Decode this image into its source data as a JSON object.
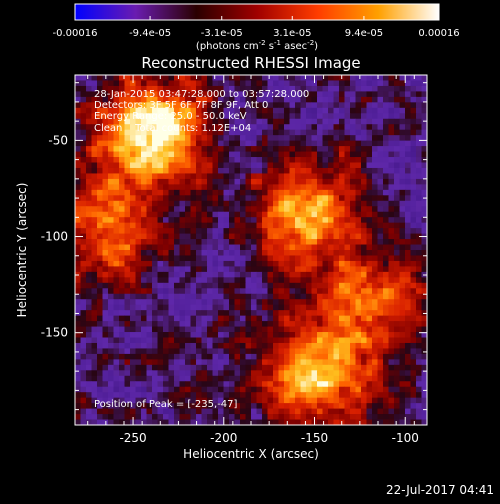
{
  "colorbar": {
    "tick_labels": [
      "-0.00016",
      "-9.4e-05",
      "-3.1e-05",
      "3.1e-05",
      "9.4e-05",
      "0.00016"
    ],
    "tick_values": [
      -0.00016,
      -9.4e-05,
      -3.1e-05,
      3.1e-05,
      9.4e-05,
      0.00016
    ],
    "unit_base": "(photons cm",
    "unit_exp1": "-2",
    "unit_mid": " s",
    "unit_exp2": "-1",
    "unit_mid2": " asec",
    "unit_exp3": "-2",
    "unit_end": ")",
    "range": [
      -0.00016,
      0.00016
    ],
    "colors": [
      "#0000ff",
      "#6a1cb0",
      "#2a0000",
      "#a00000",
      "#ff3c00",
      "#ffa000",
      "#ffffff"
    ]
  },
  "chart_data": {
    "type": "heatmap",
    "title": "Reconstructed RHESSI Image",
    "xlabel": "Heliocentric X (arcsec)",
    "ylabel": "Heliocentric Y (arcsec)",
    "xlim": [
      -282,
      -88
    ],
    "ylim": [
      -198,
      -16
    ],
    "xticks": [
      -250,
      -200,
      -150,
      -100
    ],
    "yticks": [
      -50,
      -100,
      -150
    ],
    "xtick_labels": [
      "-250",
      "-200",
      "-150",
      "-100"
    ],
    "ytick_labels": [
      "-50",
      "-100",
      "-150"
    ],
    "peak": {
      "x": -235,
      "y": -47
    },
    "bright_regions": [
      {
        "x": -240,
        "y": -45,
        "level": 1.0
      },
      {
        "x": -155,
        "y": -90,
        "level": 0.75
      },
      {
        "x": -150,
        "y": -175,
        "level": 0.8
      },
      {
        "x": -265,
        "y": -95,
        "level": 0.6
      },
      {
        "x": -120,
        "y": -135,
        "level": 0.55
      }
    ],
    "annotations": [
      "28-Jan-2015 03:47:28.000 to 03:57:28.000",
      "Detectors: 3F 5F 6F 7F 8F 9F, Att 0",
      "Energy Range: 25.0 - 50.0 keV",
      "Clean    Total counts: 1.12E+04"
    ],
    "peak_label": "Position of Peak = [-235,-47]"
  },
  "footer": {
    "timestamp": "22-Jul-2017 04:41"
  }
}
